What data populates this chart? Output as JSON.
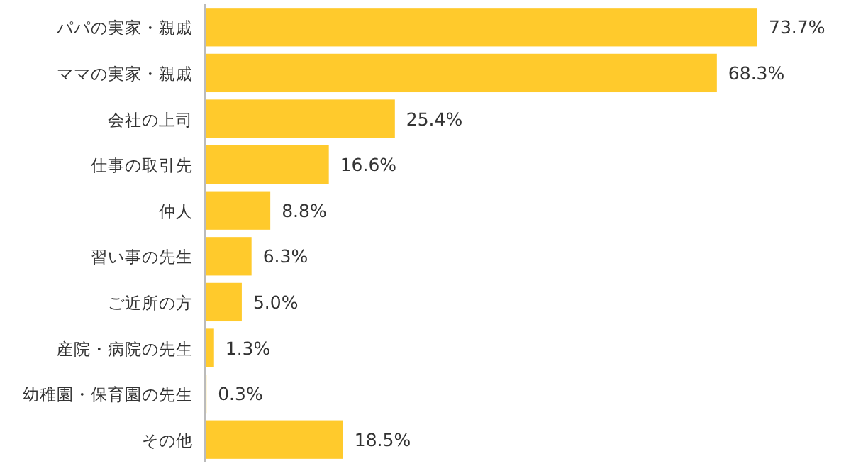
{
  "chart_data": {
    "type": "bar",
    "orientation": "horizontal",
    "color": "#ffca2c",
    "categories": [
      "パパの実家・親戚",
      "ママの実家・親戚",
      "会社の上司",
      "仕事の取引先",
      "仲人",
      "習い事の先生",
      "ご近所の方",
      "産院・病院の先生",
      "幼稚園・保育園の先生",
      "その他"
    ],
    "values": [
      73.7,
      68.3,
      25.4,
      16.6,
      8.8,
      6.3,
      5.0,
      1.3,
      0.3,
      18.5
    ],
    "value_labels": [
      "73.7%",
      "68.3%",
      "25.4%",
      "16.6%",
      "8.8%",
      "6.3%",
      "5.0%",
      "1.3%",
      "0.3%",
      "18.5%"
    ]
  }
}
